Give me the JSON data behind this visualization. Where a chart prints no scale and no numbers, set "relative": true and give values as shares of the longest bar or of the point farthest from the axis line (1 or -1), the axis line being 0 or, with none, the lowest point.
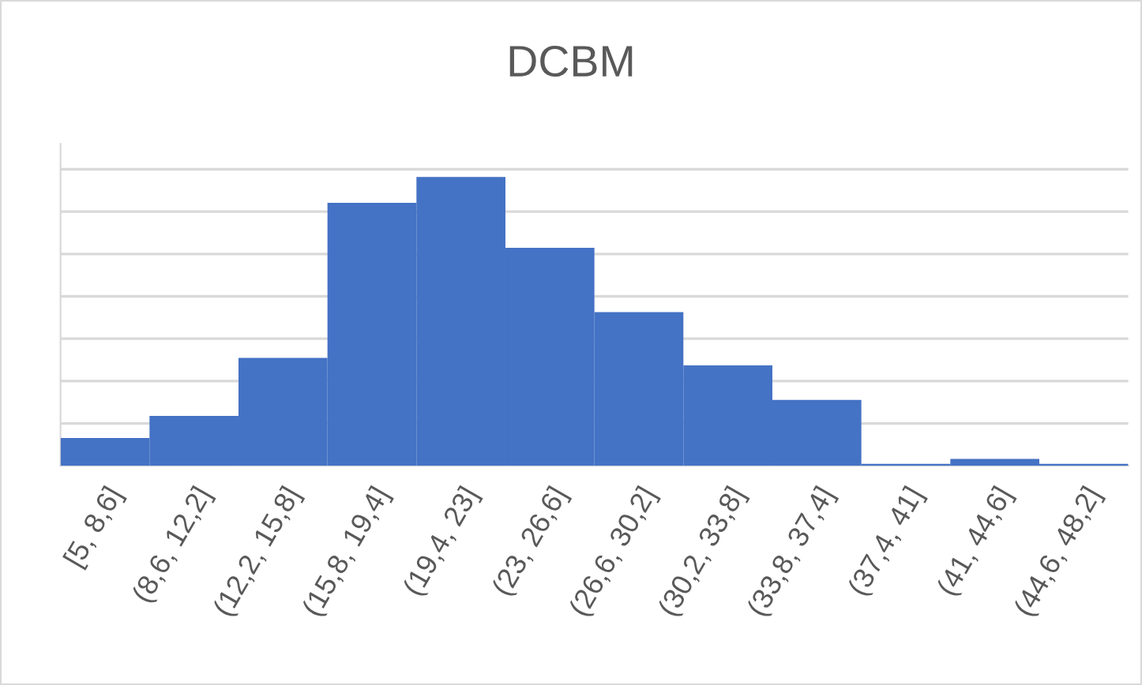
{
  "chart_data": {
    "type": "bar",
    "title": "DCBM",
    "categories": [
      "[5, 8,6]",
      "(8,6, 12,2]",
      "(12,2, 15,8]",
      "(15,8, 19,4]",
      "(19,4, 23]",
      "(23, 26,6]",
      "(26,6, 30,2]",
      "(30,2, 33,8]",
      "(33,8, 37,4]",
      "(37,4, 41]",
      "(41, 44,6]",
      "(44,6, 48,2]"
    ],
    "values": [
      0.096,
      0.173,
      0.374,
      0.911,
      1,
      0.755,
      0.532,
      0.348,
      0.228,
      0.007,
      0.024,
      0.007
    ],
    "color": "#4472c4",
    "relative": true,
    "grid": "y",
    "tick_labels": "x"
  }
}
